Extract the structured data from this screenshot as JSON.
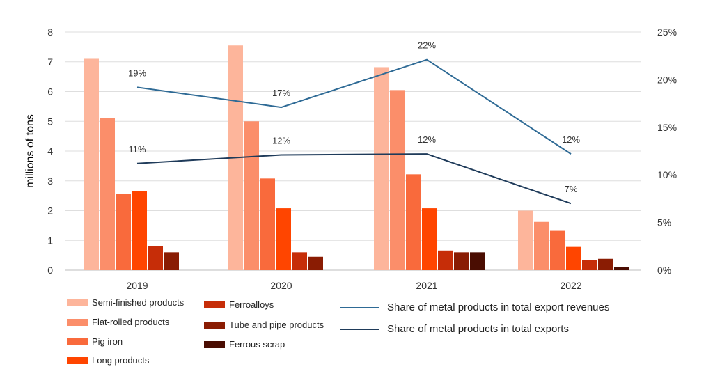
{
  "chart_data": {
    "type": "bar",
    "ylabel": "millions of tons",
    "y_left_ticks": [
      "0",
      "1",
      "2",
      "3",
      "4",
      "5",
      "6",
      "7",
      "8"
    ],
    "y_right_ticks": [
      "0%",
      "5%",
      "10%",
      "15%",
      "20%",
      "25%"
    ],
    "ylim": [
      0,
      8
    ],
    "y2lim": [
      0,
      25
    ],
    "grid": true,
    "categories": [
      "2019",
      "2020",
      "2021",
      "2022"
    ],
    "series": [
      {
        "name": "Semi-finished products",
        "color": "#FDB59B",
        "values": [
          7.1,
          7.55,
          6.82,
          2.0
        ]
      },
      {
        "name": "Flat-rolled products",
        "color": "#FB8E6A",
        "values": [
          5.1,
          5.0,
          6.05,
          1.62
        ]
      },
      {
        "name": "Pig iron",
        "color": "#F96A3C",
        "values": [
          2.57,
          3.08,
          3.22,
          1.32
        ]
      },
      {
        "name": "Long products",
        "color": "#FF4500",
        "values": [
          2.65,
          2.08,
          2.08,
          0.78
        ]
      },
      {
        "name": "Ferroalloys",
        "color": "#C62D08",
        "values": [
          0.8,
          0.6,
          0.66,
          0.33
        ]
      },
      {
        "name": "Tube and pipe products",
        "color": "#8A1C03",
        "values": [
          0.6,
          0.45,
          0.6,
          0.38
        ]
      },
      {
        "name": "Ferrous scrap",
        "color": "#4A0D02",
        "values": [
          null,
          null,
          0.6,
          0.1
        ]
      }
    ],
    "lines": [
      {
        "name": "Share of metal products in total export revenues",
        "color": "#2E6A95",
        "values": [
          19.2,
          17.1,
          22.1,
          12.2
        ],
        "labels": [
          "19%",
          "17%",
          "22%",
          "12%"
        ]
      },
      {
        "name": "Share of metal products in total exports",
        "color": "#1F3B5A",
        "values": [
          11.2,
          12.1,
          12.2,
          7.0
        ],
        "labels": [
          "11%",
          "12%",
          "12%",
          "7%"
        ]
      }
    ]
  }
}
